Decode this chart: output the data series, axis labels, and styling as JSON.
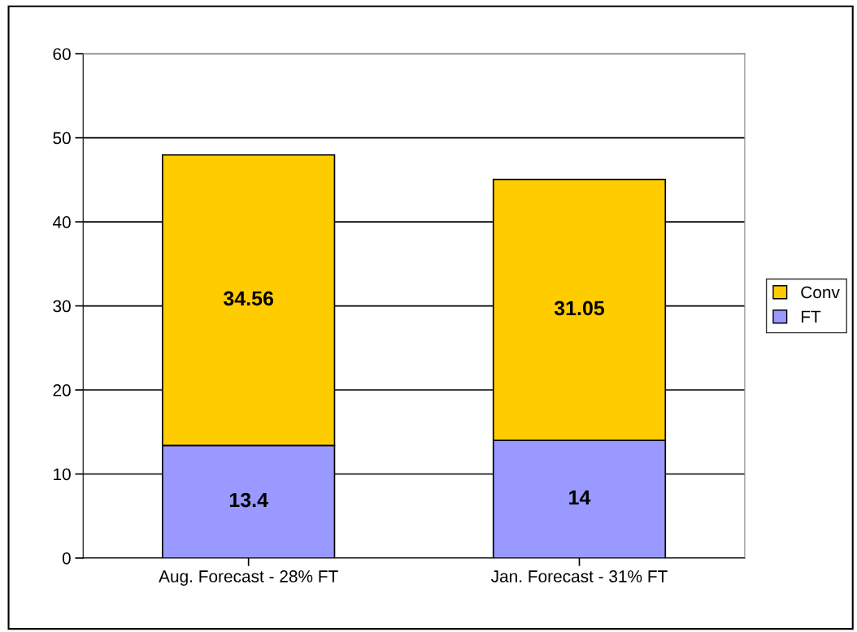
{
  "chart_data": {
    "type": "bar",
    "stacked": true,
    "categories": [
      "Aug. Forecast - 28% FT",
      "Jan. Forecast - 31% FT"
    ],
    "series": [
      {
        "name": "FT",
        "color": "#9999ff",
        "values": [
          13.4,
          14
        ]
      },
      {
        "name": "Conv",
        "color": "#ffcc00",
        "values": [
          34.56,
          31.05
        ]
      }
    ],
    "ylim": [
      0,
      60
    ],
    "yticks": [
      0,
      10,
      20,
      30,
      40,
      50,
      60
    ],
    "grid": "y",
    "legend": "right",
    "data_labels": true
  }
}
